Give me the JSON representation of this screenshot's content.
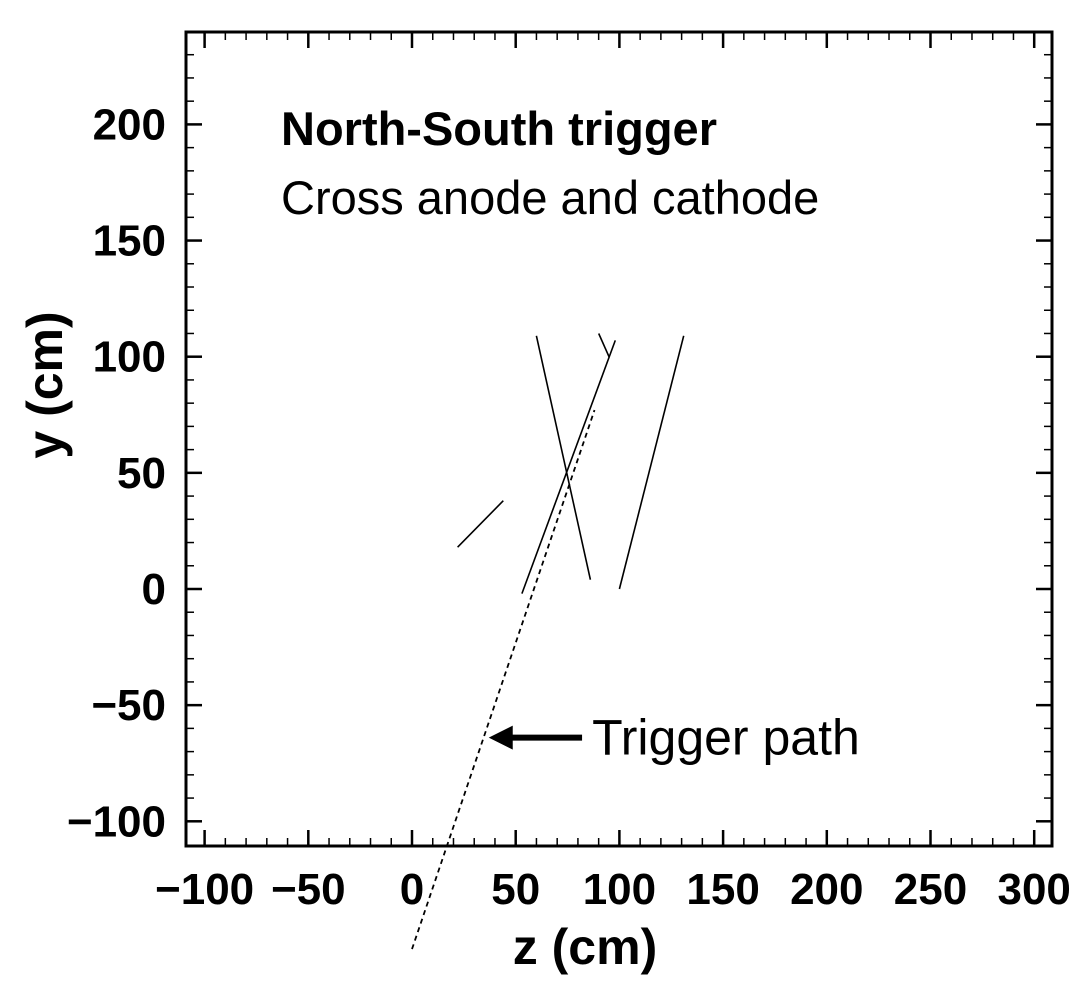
{
  "chart_data": {
    "type": "line",
    "title": "North-South trigger",
    "subtitle": "Cross anode and cathode",
    "xlabel": "z (cm)",
    "ylabel": "y (cm)",
    "xlim": [
      -110,
      310
    ],
    "ylim": [
      -110,
      240
    ],
    "xticks": [
      -100,
      -50,
      0,
      50,
      100,
      150,
      200,
      250,
      300
    ],
    "xtick_labels": [
      "−100",
      "−50",
      "0",
      "50",
      "100",
      "150",
      "200",
      "250",
      "300"
    ],
    "yticks": [
      -100,
      -50,
      0,
      50,
      100,
      150,
      200
    ],
    "ytick_labels": [
      "−100",
      "−50",
      "0",
      "50",
      "100",
      "150",
      "200"
    ],
    "grid": false,
    "series": [
      {
        "style": "solid",
        "points": [
          [
            22,
            18
          ],
          [
            44,
            38
          ]
        ]
      },
      {
        "style": "solid",
        "points": [
          [
            60,
            109
          ],
          [
            86,
            4
          ]
        ]
      },
      {
        "style": "solid",
        "points": [
          [
            53,
            -2
          ],
          [
            98,
            107
          ]
        ]
      },
      {
        "style": "solid",
        "points": [
          [
            90,
            110
          ],
          [
            95,
            100
          ]
        ]
      },
      {
        "style": "solid",
        "points": [
          [
            100,
            0
          ],
          [
            131,
            109
          ]
        ]
      },
      {
        "style": "dashed",
        "points": [
          [
            0,
            -155
          ],
          [
            88,
            77
          ]
        ]
      }
    ],
    "annotations": [
      {
        "text": "Trigger path",
        "arrow_to": [
          37,
          -64
        ],
        "arrow_from": [
          82,
          -64
        ]
      }
    ]
  }
}
